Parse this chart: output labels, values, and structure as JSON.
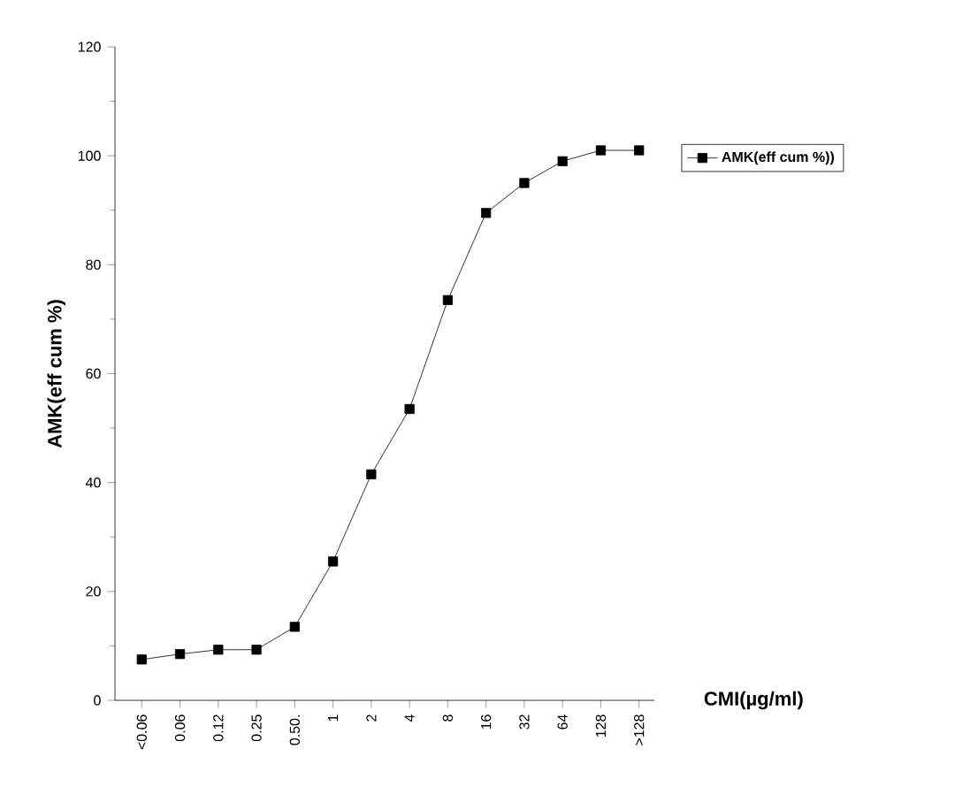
{
  "chart_data": {
    "type": "line",
    "xlabel": "CMI(µg/ml)",
    "ylabel": "AMK(eff cum %)",
    "categories": [
      "<0.06",
      "0.06",
      "0.12",
      "0.25",
      "0.50.",
      "1",
      "2",
      "4",
      "8",
      "16",
      "32",
      "64",
      "128",
      ">128"
    ],
    "series": [
      {
        "name": "AMK(eff cum %))",
        "color": "#000000",
        "values": [
          7.5,
          8.5,
          9.3,
          9.3,
          13.5,
          25.5,
          41.5,
          53.5,
          73.5,
          89.5,
          95,
          99,
          101,
          101
        ]
      }
    ],
    "ylim": [
      0,
      120
    ],
    "yticks": [
      0,
      20,
      40,
      60,
      80,
      100,
      120
    ],
    "marker": "square",
    "line_style": "solid",
    "legend": "right",
    "grid": false
  }
}
